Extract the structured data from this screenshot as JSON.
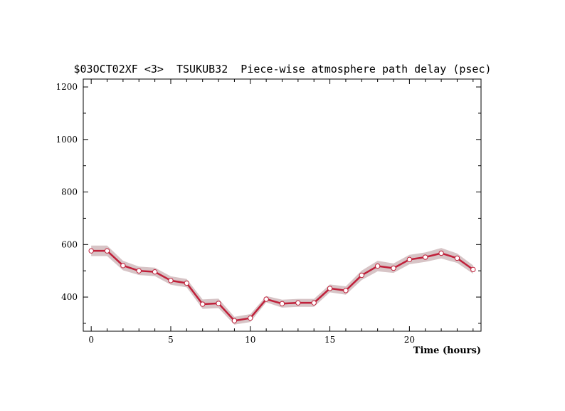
{
  "chart_data": {
    "type": "line",
    "title": "$03OCT02XF <3>  TSUKUB32  Piece-wise atmosphere path delay (psec)",
    "xlabel": "Time (hours)",
    "ylabel": "",
    "xlim": [
      -0.5,
      24.5
    ],
    "ylim": [
      270,
      1230
    ],
    "x_ticks": [
      0,
      5,
      10,
      15,
      20
    ],
    "y_ticks": [
      400,
      600,
      800,
      1000,
      1200
    ],
    "grid": false,
    "colors": {
      "line": "#c0203a",
      "band": "#d7c4c6",
      "marker_fill": "#ffffff"
    },
    "series": [
      {
        "x": [
          0,
          1,
          2,
          3,
          4,
          5,
          6,
          7,
          8,
          9,
          10,
          11,
          12,
          13,
          14,
          15,
          16,
          17,
          18,
          19,
          20,
          21,
          22,
          23,
          24
        ],
        "values": [
          576,
          576,
          520,
          500,
          496,
          463,
          453,
          373,
          376,
          310,
          320,
          392,
          375,
          378,
          378,
          433,
          425,
          483,
          518,
          510,
          543,
          552,
          567,
          548,
          505
        ],
        "error": [
          20,
          20,
          18,
          16,
          16,
          16,
          16,
          18,
          18,
          15,
          15,
          12,
          15,
          15,
          15,
          15,
          16,
          18,
          20,
          18,
          18,
          18,
          20,
          18,
          16
        ]
      }
    ]
  }
}
